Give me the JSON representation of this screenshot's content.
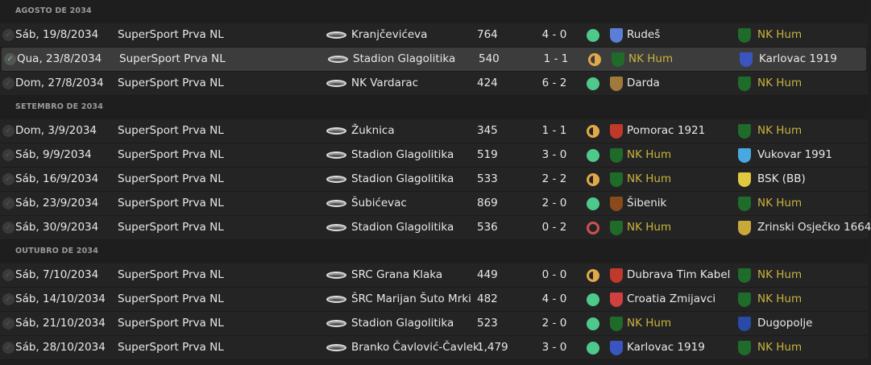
{
  "colors": {
    "accent_team": "#c9b53c",
    "win": "#4fc98b",
    "draw": "#e0a84a",
    "loss": "#d05050"
  },
  "sections": [
    {
      "title": "AGOSTO DE 2034",
      "matches": [
        {
          "date": "Sáb, 19/8/2034",
          "competition": "SuperSport Prva NL",
          "stadium": "Kranjčevićeva",
          "attendance": "764",
          "score": "4 - 0",
          "result": "W",
          "home": "Rudeš",
          "home_color": "#5b7fd6",
          "away": "NK Hum",
          "away_color": "#1e6b2a",
          "selected": false
        },
        {
          "date": "Qua, 23/8/2034",
          "competition": "SuperSport Prva NL",
          "stadium": "Stadion Glagolitika",
          "attendance": "540",
          "score": "1 - 1",
          "result": "D",
          "home": "NK Hum",
          "home_color": "#1e6b2a",
          "away": "Karlovac 1919",
          "away_color": "#3a55c0",
          "selected": true
        },
        {
          "date": "Dom, 27/8/2034",
          "competition": "SuperSport Prva NL",
          "stadium": "NK Vardarac",
          "attendance": "424",
          "score": "6 - 2",
          "result": "W",
          "home": "Darda",
          "home_color": "#a07a3a",
          "away": "NK Hum",
          "away_color": "#1e6b2a",
          "selected": false
        }
      ]
    },
    {
      "title": "SETEMBRO DE 2034",
      "matches": [
        {
          "date": "Dom, 3/9/2034",
          "competition": "SuperSport Prva NL",
          "stadium": "Žuknica",
          "attendance": "345",
          "score": "1 - 1",
          "result": "D",
          "home": "Pomorac 1921",
          "home_color": "#c0392b",
          "away": "NK Hum",
          "away_color": "#1e6b2a",
          "selected": false
        },
        {
          "date": "Sáb, 9/9/2034",
          "competition": "SuperSport Prva NL",
          "stadium": "Stadion Glagolitika",
          "attendance": "519",
          "score": "3 - 0",
          "result": "W",
          "home": "NK Hum",
          "home_color": "#1e6b2a",
          "away": "Vukovar 1991",
          "away_color": "#4aa8e0",
          "selected": false
        },
        {
          "date": "Sáb, 16/9/2034",
          "competition": "SuperSport Prva NL",
          "stadium": "Stadion Glagolitika",
          "attendance": "533",
          "score": "2 - 2",
          "result": "D",
          "home": "NK Hum",
          "home_color": "#1e6b2a",
          "away": "BSK (BB)",
          "away_color": "#e0c840",
          "selected": false
        },
        {
          "date": "Sáb, 23/9/2034",
          "competition": "SuperSport Prva NL",
          "stadium": "Šubićevac",
          "attendance": "869",
          "score": "2 - 0",
          "result": "W",
          "home": "Šibenik",
          "home_color": "#8a4a1a",
          "away": "NK Hum",
          "away_color": "#1e6b2a",
          "selected": false
        },
        {
          "date": "Sáb, 30/9/2034",
          "competition": "SuperSport Prva NL",
          "stadium": "Stadion Glagolitika",
          "attendance": "536",
          "score": "0 - 2",
          "result": "L",
          "home": "NK Hum",
          "home_color": "#1e6b2a",
          "away": "Zrinski Osječko 1664",
          "away_color": "#c9a83a",
          "selected": false
        }
      ]
    },
    {
      "title": "OUTUBRO DE 2034",
      "matches": [
        {
          "date": "Sáb, 7/10/2034",
          "competition": "SuperSport Prva NL",
          "stadium": "SRC Grana Klaka",
          "attendance": "449",
          "score": "0 - 0",
          "result": "D",
          "home": "Dubrava Tim Kabel",
          "home_color": "#c0392b",
          "away": "NK Hum",
          "away_color": "#1e6b2a",
          "selected": false
        },
        {
          "date": "Sáb, 14/10/2034",
          "competition": "SuperSport Prva NL",
          "stadium": "ŠRC Marijan Šuto Mrki",
          "attendance": "482",
          "score": "4 - 0",
          "result": "W",
          "home": "Croatia Zmijavci",
          "home_color": "#d04040",
          "away": "NK Hum",
          "away_color": "#1e6b2a",
          "selected": false
        },
        {
          "date": "Sáb, 21/10/2034",
          "competition": "SuperSport Prva NL",
          "stadium": "Stadion Glagolitika",
          "attendance": "523",
          "score": "2 - 0",
          "result": "W",
          "home": "NK Hum",
          "home_color": "#1e6b2a",
          "away": "Dugopolje",
          "away_color": "#2a4aa8",
          "selected": false
        },
        {
          "date": "Sáb, 28/10/2034",
          "competition": "SuperSport Prva NL",
          "stadium": "Branko Čavlović-Čavlek",
          "attendance": "1,479",
          "score": "3 - 0",
          "result": "W",
          "home": "Karlovac 1919",
          "home_color": "#3a55c0",
          "away": "NK Hum",
          "away_color": "#1e6b2a",
          "selected": false
        }
      ]
    }
  ]
}
